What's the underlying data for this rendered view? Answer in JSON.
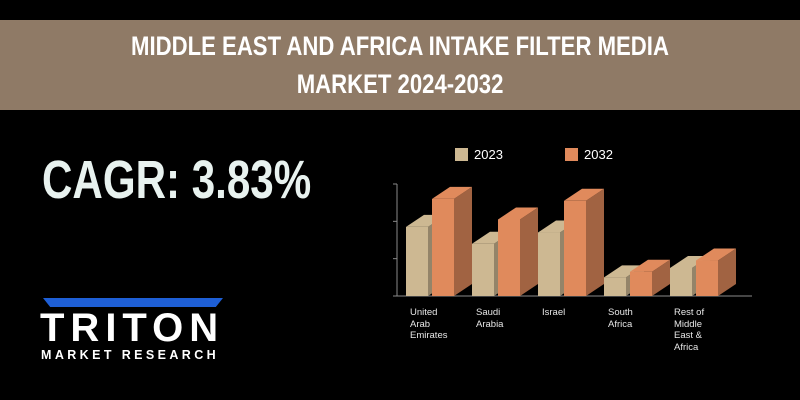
{
  "header": {
    "title_line1": "MIDDLE EAST AND AFRICA  INTAKE FILTER MEDIA",
    "title_line2": "MARKET 2024-2032"
  },
  "cagr": {
    "text": "CAGR: 3.83%"
  },
  "logo": {
    "word": "TRITON",
    "subtitle": "MARKET RESEARCH"
  },
  "colors": {
    "banner": "#8f7a66",
    "series_2023": "#cdb892",
    "series_2032": "#e08a5c",
    "logo_accent": "#1e5fd6"
  },
  "chart_data": {
    "type": "bar",
    "style": "3d-clustered-column",
    "categories": [
      "United Arab Emirates",
      "Saudi Arabia",
      "Israel",
      "South Africa",
      "Rest of Middle East & Africa"
    ],
    "category_display": [
      [
        "United",
        "Arab",
        "Emirates"
      ],
      [
        "Saudi",
        "Arabia"
      ],
      [
        "Israel"
      ],
      [
        "South",
        "Africa"
      ],
      [
        "Rest of",
        "Middle",
        "East &",
        "Africa"
      ]
    ],
    "series": [
      {
        "name": "2023",
        "values": [
          1.85,
          1.4,
          1.7,
          0.5,
          0.75
        ]
      },
      {
        "name": "2032",
        "values": [
          2.6,
          2.05,
          2.55,
          0.65,
          0.95
        ]
      }
    ],
    "ylim": [
      0,
      3
    ],
    "legend": "top",
    "grid": false
  }
}
